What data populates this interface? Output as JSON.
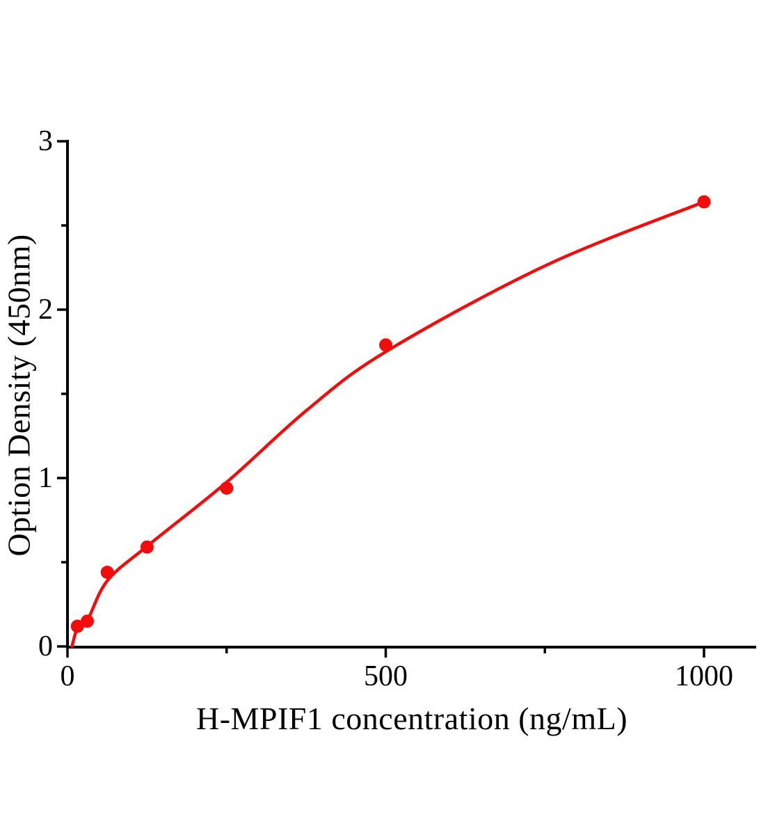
{
  "figure": {
    "background": "#ffffff",
    "axis_color": "#000000"
  },
  "chart_data": {
    "type": "scatter",
    "title": "",
    "xlabel": "H-MPIF1 concentration (ng/mL)",
    "ylabel": "Option Density (450nm)",
    "xlim": [
      0,
      1082
    ],
    "ylim": [
      0,
      3
    ],
    "grid": false,
    "legend": null,
    "x_axis": {
      "ticks_major": [
        0,
        500,
        1000
      ],
      "tick_labels": [
        "0",
        "500",
        "1000"
      ],
      "ticks_minor": [
        250,
        750
      ]
    },
    "y_axis": {
      "ticks_major": [
        0,
        1,
        2,
        3
      ],
      "tick_labels": [
        "0",
        "1",
        "2",
        "3"
      ],
      "ticks_minor": [
        0.5,
        1.5,
        2.5
      ]
    },
    "series": [
      {
        "name": "standard-data-points",
        "type": "scatter",
        "marker": "circle",
        "color": "#f20d0d",
        "points": [
          {
            "x": 15.6,
            "y": 0.12
          },
          {
            "x": 31.2,
            "y": 0.15
          },
          {
            "x": 62.5,
            "y": 0.44
          },
          {
            "x": 125,
            "y": 0.59
          },
          {
            "x": 250,
            "y": 0.94
          },
          {
            "x": 500,
            "y": 1.79
          },
          {
            "x": 1000,
            "y": 2.64
          }
        ]
      },
      {
        "name": "fitted-curve",
        "type": "line",
        "color": "#f20d0d",
        "points": [
          {
            "x": 7,
            "y": 0.0
          },
          {
            "x": 15.6,
            "y": 0.107
          },
          {
            "x": 31.2,
            "y": 0.155
          },
          {
            "x": 62.5,
            "y": 0.39
          },
          {
            "x": 125,
            "y": 0.595
          },
          {
            "x": 250,
            "y": 0.975
          },
          {
            "x": 375,
            "y": 1.4
          },
          {
            "x": 500,
            "y": 1.75
          },
          {
            "x": 750,
            "y": 2.26
          },
          {
            "x": 1000,
            "y": 2.64
          }
        ]
      }
    ]
  }
}
